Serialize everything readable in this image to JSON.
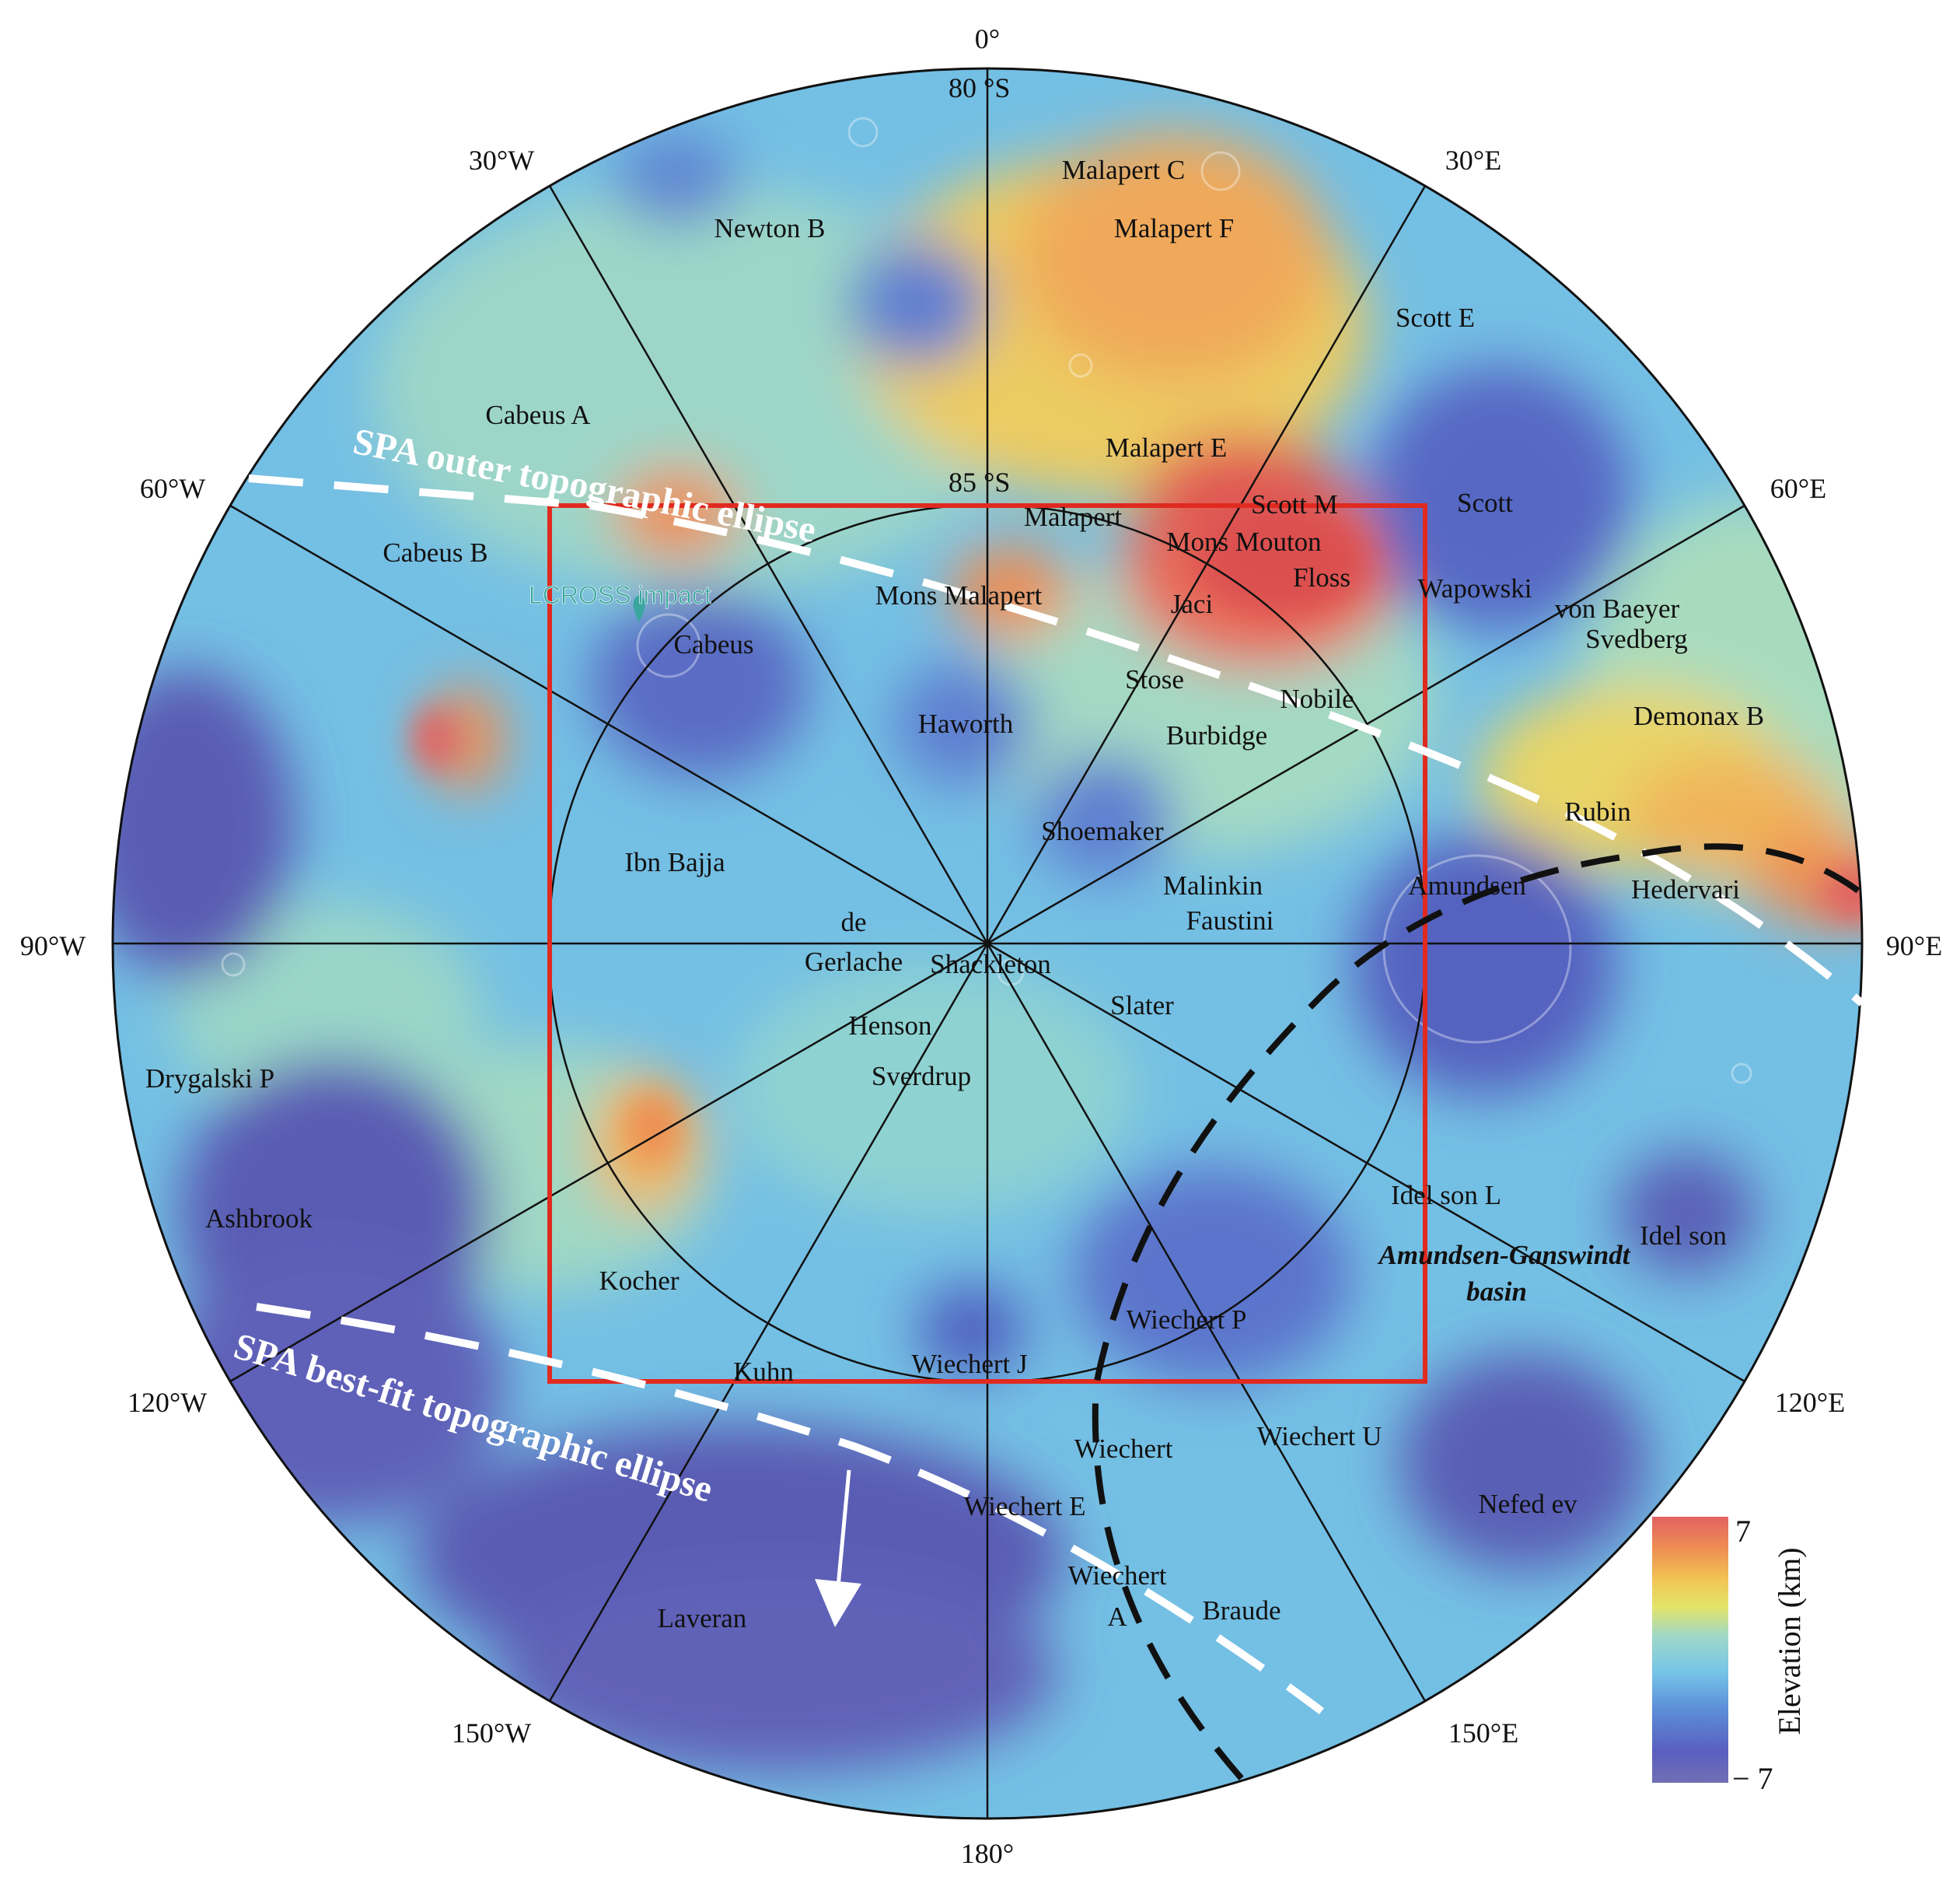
{
  "title": "",
  "longitude_labels": {
    "lon_0": "0°",
    "lon_30w": "30°W",
    "lon_30e": "30°E",
    "lon_60w": "60°W",
    "lon_60e": "60°E",
    "lon_90w": "90°W",
    "lon_90e": "90°E",
    "lon_120w": "120°W",
    "lon_120e": "120°E",
    "lon_150w": "150°W",
    "lon_150e": "150°E",
    "lon_180": "180°"
  },
  "latitude_labels": {
    "lat_80": "80 °S",
    "lat_85": "85 °S"
  },
  "features": {
    "newton_b": "Newton B",
    "malapert_c": "Malapert C",
    "malapert_f": "Malapert F",
    "scott_e": "Scott E",
    "cabeus_a": "Cabeus A",
    "malapert_e": "Malapert E",
    "cabeus_b": "Cabeus B",
    "scott_m": "Scott M",
    "malapert": "Malapert",
    "mons_mouton": "Mons Mouton",
    "scott": "Scott",
    "floss": "Floss",
    "mons_malapert": "Mons Malapert",
    "jaci": "Jaci",
    "wapowski": "Wapowski",
    "von_baeyer": "von Baeyer",
    "svedberg": "Svedberg",
    "cabeus": "Cabeus",
    "stose": "Stose",
    "nobile": "Nobile",
    "haworth": "Haworth",
    "burbidge": "Burbidge",
    "demonax_b": "Demonax B",
    "rubin": "Rubin",
    "shoemaker": "Shoemaker",
    "ibn_bajja": "Ibn Bajja",
    "malinkin": "Malinkin",
    "amundsen": "Amundsen",
    "hedervari": "Hedervari",
    "faustini": "Faustini",
    "de": "de",
    "gerlache": "Gerlache",
    "shackleton": "Shackleton",
    "slater": "Slater",
    "henson": "Henson",
    "sverdrup": "Sverdrup",
    "drygalski_p": "Drygalski P",
    "idel_son_l": "Idel son L",
    "ashbrook": "Ashbrook",
    "idel_son": "Idel son",
    "kocher": "Kocher",
    "wiechert_p": "Wiechert P",
    "kuhn": "Kuhn",
    "wiechert_j": "Wiechert J",
    "wiechert": "Wiechert",
    "wiechert_u": "Wiechert U",
    "wiechert_e": "Wiechert E",
    "nefed_ev": "Nefed ev",
    "wiechert_a1": "Wiechert",
    "wiechert_a2": "A",
    "braude": "Braude",
    "laveran": "Laveran"
  },
  "annotations": {
    "lcross": "LCROSS impact",
    "spa_outer": "SPA outer topographic ellipse",
    "spa_bestfit": "SPA best-fit topographic ellipse",
    "basin_line1": "Amundsen-Ganswindt",
    "basin_line2": "basin"
  },
  "colorbar": {
    "label": "Elevation (km)",
    "max_label": "7",
    "min_label": "− 7",
    "max_km": 7,
    "min_km": -7,
    "colors": [
      "#6f6fb3",
      "#5a5fc0",
      "#5c8fd8",
      "#77c6e8",
      "#9ed8c8",
      "#e2e46a",
      "#f2c654",
      "#ee8e52",
      "#e26262"
    ]
  },
  "map_colors": {
    "high": "#e05a55",
    "mid_high": "#f0b45a",
    "mid": "#e6df72",
    "mid_low": "#8fd2d2",
    "low": "#6cb6e2",
    "lowest": "#5a62b8",
    "frame": "#e02a20"
  }
}
